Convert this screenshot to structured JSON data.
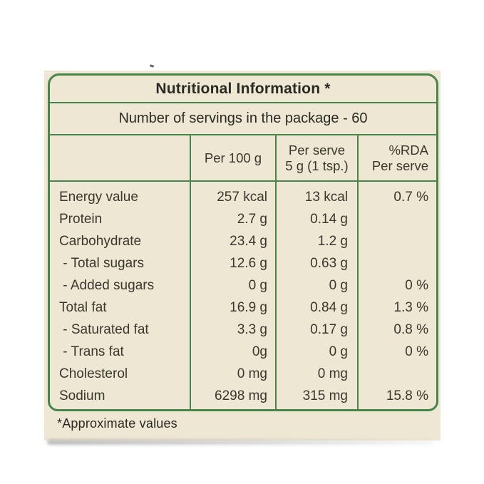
{
  "colors": {
    "green": "#47854A",
    "beige": "#EDE7D3",
    "text": "#3A372E",
    "title-text": "#2B2922"
  },
  "label": {
    "title": "Nutritional Information *",
    "servings": "Number of servings in the package - 60",
    "header": {
      "col_label": "",
      "per_100g": "Per 100 g",
      "per_serve_line1": "Per serve",
      "per_serve_line2": "5 g (1 tsp.)",
      "rda_line1": "%RDA",
      "rda_line2": "Per serve"
    },
    "rows": [
      {
        "label": "Energy value",
        "per_100g": "257 kcal",
        "per_serve": "13 kcal",
        "rda": "0.7 %"
      },
      {
        "label": "Protein",
        "per_100g": "2.7 g",
        "per_serve": "0.14 g",
        "rda": ""
      },
      {
        "label": "Carbohydrate",
        "per_100g": "23.4 g",
        "per_serve": "1.2 g",
        "rda": ""
      },
      {
        "label": " - Total sugars",
        "per_100g": "12.6 g",
        "per_serve": "0.63 g",
        "rda": ""
      },
      {
        "label": " - Added sugars",
        "per_100g": "0 g",
        "per_serve": "0 g",
        "rda": "0 %"
      },
      {
        "label": "Total fat",
        "per_100g": "16.9 g",
        "per_serve": "0.84 g",
        "rda": "1.3 %"
      },
      {
        "label": " - Saturated fat",
        "per_100g": "3.3 g",
        "per_serve": "0.17 g",
        "rda": "0.8 %"
      },
      {
        "label": " - Trans fat",
        "per_100g": "0g",
        "per_serve": "0 g",
        "rda": "0 %"
      },
      {
        "label": "Cholesterol",
        "per_100g": "0 mg",
        "per_serve": "0 mg",
        "rda": ""
      },
      {
        "label": "Sodium",
        "per_100g": "6298 mg",
        "per_serve": "315 mg",
        "rda": "15.8 %"
      }
    ],
    "footnote": "*Approximate values"
  }
}
